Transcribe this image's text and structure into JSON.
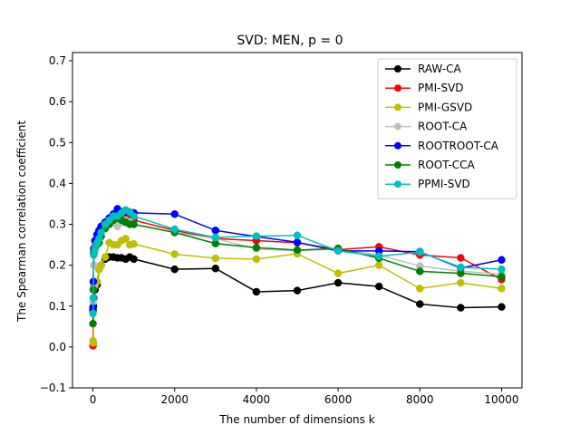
{
  "chart_data": {
    "type": "line",
    "title": "SVD: MEN, p = 0",
    "xlabel": "The number of dimensions k",
    "ylabel": "The Spearman correlation coefficient",
    "xlim": [
      -500,
      10500
    ],
    "ylim": [
      -0.1,
      0.72
    ],
    "xticks": [
      0,
      2000,
      4000,
      6000,
      8000,
      10000
    ],
    "yticks": [
      -0.1,
      0.0,
      0.1,
      0.2,
      0.3,
      0.4,
      0.5,
      0.6,
      0.7
    ],
    "xtick_labels": [
      "0",
      "2000",
      "4000",
      "6000",
      "8000",
      "10000"
    ],
    "ytick_labels": [
      "−0.1",
      "0.0",
      "0.1",
      "0.2",
      "0.3",
      "0.4",
      "0.5",
      "0.6",
      "0.7"
    ],
    "grid": false,
    "legend_position": "top-right",
    "x": [
      1,
      10,
      20,
      50,
      100,
      150,
      200,
      300,
      400,
      500,
      600,
      700,
      800,
      900,
      1000,
      2000,
      3000,
      4000,
      5000,
      6000,
      7000,
      8000,
      9000,
      10000
    ],
    "series": [
      {
        "name": "RAW-CA",
        "color": "#000000",
        "values": [
          0.09,
          0.1,
          0.12,
          0.14,
          0.152,
          0.19,
          0.2,
          0.215,
          0.22,
          0.22,
          0.218,
          0.218,
          0.215,
          0.22,
          0.215,
          0.19,
          0.192,
          0.135,
          0.138,
          0.157,
          0.148,
          0.105,
          0.096,
          0.098
        ]
      },
      {
        "name": "PMI-SVD",
        "color": "#ff0000",
        "values": [
          0.003,
          0.15,
          0.23,
          0.25,
          0.26,
          0.27,
          0.29,
          0.305,
          0.315,
          0.32,
          0.32,
          0.32,
          0.325,
          0.32,
          0.31,
          0.285,
          0.265,
          0.26,
          0.255,
          0.238,
          0.245,
          0.225,
          0.218,
          0.165
        ]
      },
      {
        "name": "PMI-GSVD",
        "color": "#bfbf00",
        "values": [
          0.015,
          0.01,
          0.145,
          0.15,
          0.16,
          0.19,
          0.2,
          0.22,
          0.255,
          0.25,
          0.25,
          0.26,
          0.265,
          0.25,
          0.252,
          0.227,
          0.217,
          0.215,
          0.228,
          0.18,
          0.2,
          0.143,
          0.157,
          0.143
        ]
      },
      {
        "name": "ROOT-CA",
        "color": "#bfbfbf",
        "values": [
          0.11,
          0.15,
          0.2,
          0.25,
          0.265,
          0.275,
          0.285,
          0.29,
          0.3,
          0.305,
          0.295,
          0.305,
          0.31,
          0.305,
          0.3,
          0.28,
          0.265,
          0.24,
          0.235,
          0.24,
          0.225,
          0.198,
          0.185,
          0.178
        ]
      },
      {
        "name": "ROOTROOT-CA",
        "color": "#0000ff",
        "values": [
          0.095,
          0.16,
          0.24,
          0.26,
          0.275,
          0.285,
          0.295,
          0.305,
          0.315,
          0.325,
          0.338,
          0.33,
          0.33,
          0.33,
          0.328,
          0.325,
          0.285,
          0.27,
          0.256,
          0.235,
          0.235,
          0.233,
          0.193,
          0.213
        ]
      },
      {
        "name": "ROOT-CCA",
        "color": "#008000",
        "values": [
          0.057,
          0.14,
          0.23,
          0.24,
          0.25,
          0.255,
          0.27,
          0.29,
          0.3,
          0.31,
          0.315,
          0.31,
          0.305,
          0.3,
          0.3,
          0.28,
          0.253,
          0.243,
          0.237,
          0.241,
          0.217,
          0.185,
          0.18,
          0.172
        ]
      },
      {
        "name": "PPMI-SVD",
        "color": "#00bfbf",
        "values": [
          0.082,
          0.12,
          0.225,
          0.24,
          0.255,
          0.265,
          0.28,
          0.3,
          0.31,
          0.32,
          0.32,
          0.328,
          0.335,
          0.33,
          0.32,
          0.288,
          0.268,
          0.271,
          0.273,
          0.235,
          0.222,
          0.232,
          0.195,
          0.19
        ]
      }
    ]
  }
}
